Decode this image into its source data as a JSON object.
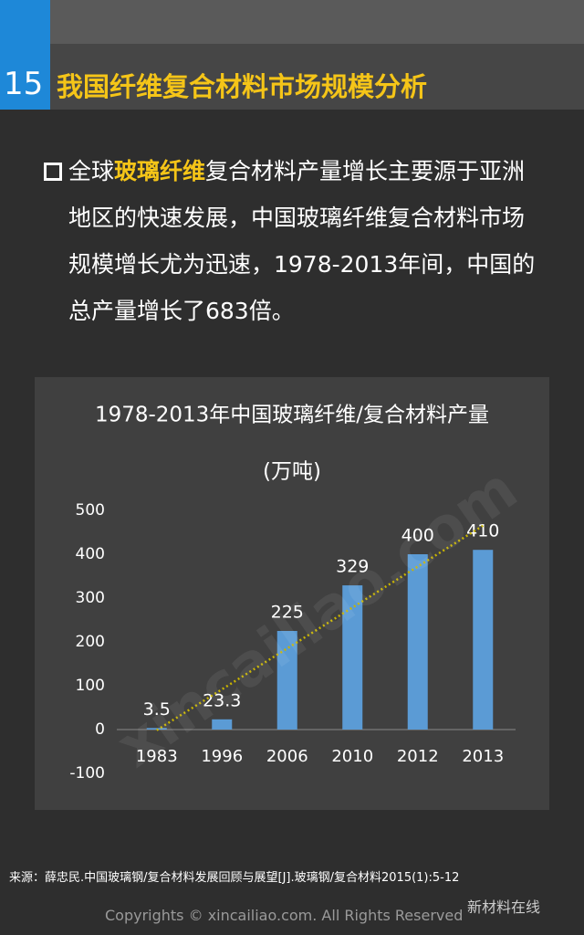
{
  "header": {
    "number": "15",
    "title": "我国纤维复合材料市场规模分析"
  },
  "bullet": {
    "lead": "全球",
    "highlight": "玻璃纤维",
    "text": "复合材料产量增长主要源于亚洲地区的快速发展，中国玻璃纤维复合材料市场规模增长尤为迅速，1978-2013年间，中国的总产量增长了683倍。"
  },
  "chart_data": {
    "type": "bar",
    "title": "1978-2013年中国玻璃纤维/复合材料产量",
    "subtitle": "(万吨)",
    "categories": [
      "1983",
      "1996",
      "2006",
      "2010",
      "2012",
      "2013"
    ],
    "values": [
      3.5,
      23.3,
      225,
      329,
      400,
      410
    ],
    "color": "#5b9bd5",
    "ylim": [
      -100,
      500
    ],
    "yticks": [
      -100,
      0,
      100,
      200,
      300,
      400,
      500
    ],
    "trendline": true,
    "trendline_color": "#c8b400"
  },
  "source": "来源：薛忠民.中国玻璃钢/复合材料发展回顾与展望[J].玻璃钢/复合材料2015(1):5-12",
  "watermark": "xincailiao.com",
  "footer": {
    "copyright": "Copyrights © xincailiao.com. All Rights Reserved",
    "brand": "新材料在线"
  }
}
